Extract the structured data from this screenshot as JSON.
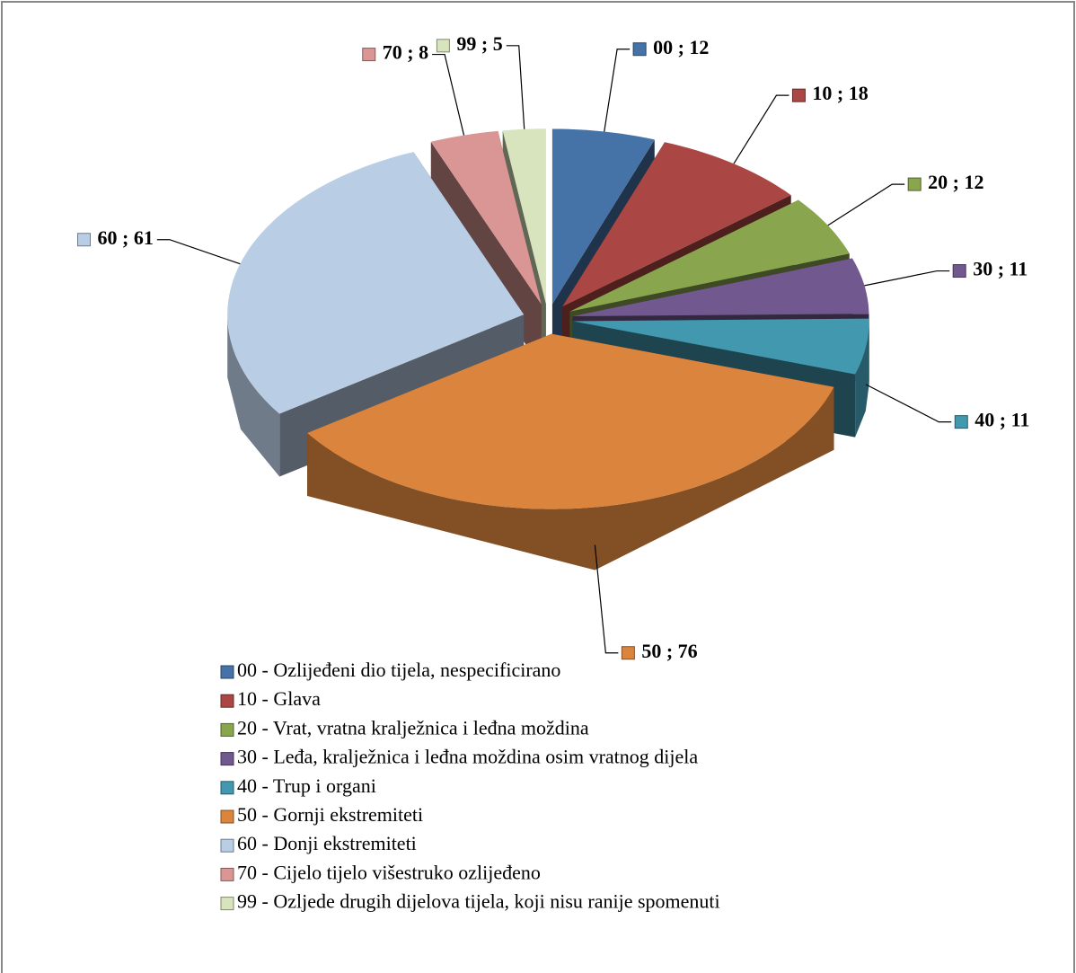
{
  "chart_data": {
    "type": "pie3d",
    "categories": [
      "00 - Ozlijeđeni dio tijela, nespecificirano",
      "10 - Glava",
      "20 - Vrat, vratna kralježnica i leđna moždina",
      "30 - Leđa, kralježnica i leđna moždina osim vratnog dijela",
      "40 - Trup i organi",
      "50 - Gornji ekstremiteti",
      "60 - Donji ekstremiteti",
      "70 - Cijelo tijelo višestruko ozlijeđeno",
      "99 - Ozljede drugih dijelova tijela, koji nisu ranije spomenuti"
    ],
    "values": [
      12,
      18,
      12,
      11,
      11,
      76,
      61,
      8,
      5
    ],
    "value_labels": [
      "00 ; 12",
      "10 ; 18",
      "20 ; 12",
      "30 ; 11",
      "40 ; 11",
      "50 ; 76",
      "60 ; 61",
      "70 ; 8",
      "99 ; 5"
    ],
    "colors": [
      "#4572a7",
      "#aa4643",
      "#89a54e",
      "#71588f",
      "#4198af",
      "#db843d",
      "#b9cde5",
      "#d99694",
      "#d7e4bd"
    ],
    "legend": "bottom"
  }
}
